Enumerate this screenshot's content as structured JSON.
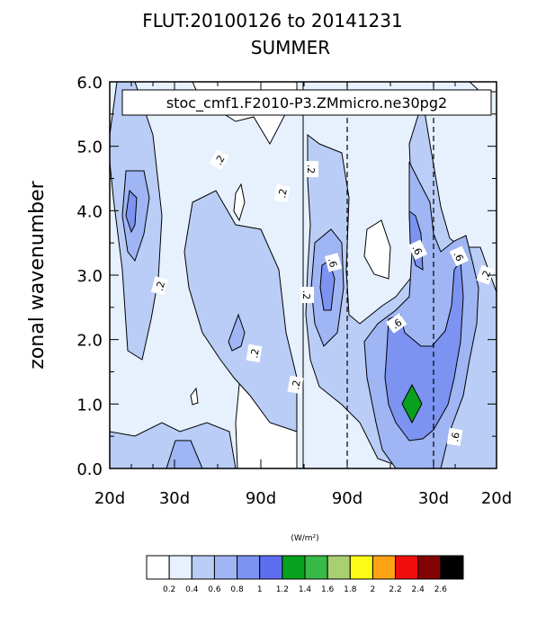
{
  "chart_data": {
    "type": "contour",
    "title": "FLUT:20100126 to 20141231",
    "subtitle": "SUMMER",
    "ylabel": "zonal wavenumber",
    "xlabel": "",
    "ylim": [
      0,
      6
    ],
    "yticks": [
      "0.0",
      "1.0",
      "2.0",
      "3.0",
      "4.0",
      "5.0",
      "6.0"
    ],
    "xticks": [
      "20d",
      "30d",
      "90d",
      "90d",
      "30d",
      "20d"
    ],
    "annotation": "stoc_cmf1.F2010-P3.ZMmicro.ne30pg2",
    "contour_labels": [
      ".2",
      ".2",
      ".2",
      ".2",
      ".2",
      ".2",
      ".2",
      ".6",
      ".6",
      ".6",
      ".6",
      ".6",
      ".2"
    ],
    "colorbar": {
      "unit_label": "(W/m²)",
      "tick_labels": [
        "0.2",
        "0.4",
        "0.6",
        "0.8",
        "1",
        "1.2",
        "1.4",
        "1.6",
        "1.8",
        "2",
        "2.2",
        "2.4",
        "2.6"
      ],
      "colors": [
        "#ffffff",
        "#e6f1fd",
        "#b9cdf6",
        "#9fb5f4",
        "#7c93f1",
        "#5f6ef1",
        "#07a11e",
        "#39b947",
        "#aacf71",
        "#fcfb18",
        "#fca213",
        "#f20d0d",
        "#820303",
        "#000000"
      ]
    },
    "fill_regions": [
      {
        "level": 1,
        "color": "#e6f1fd"
      },
      {
        "level": 2,
        "color": "#b9cdf6"
      },
      {
        "level": 3,
        "color": "#9fb5f4"
      },
      {
        "level": 4,
        "color": "#7c93f1"
      },
      {
        "level": 6,
        "color": "#07a11e"
      }
    ]
  }
}
